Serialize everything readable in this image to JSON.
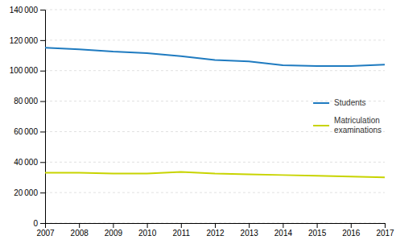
{
  "chart_data": {
    "type": "line",
    "x": [
      2007,
      2008,
      2009,
      2010,
      2011,
      2012,
      2013,
      2014,
      2015,
      2016,
      2017
    ],
    "xlim": [
      2007,
      2017
    ],
    "xticks": [
      2007,
      2008,
      2009,
      2010,
      2011,
      2012,
      2013,
      2014,
      2015,
      2016,
      2017
    ],
    "ylim": [
      0,
      140000
    ],
    "yticks": [
      0,
      {
        "value": 20000,
        "label": "20 000"
      },
      {
        "value": 40000,
        "label": "40 000"
      },
      {
        "value": 60000,
        "label": "60 000"
      },
      {
        "value": 80000,
        "label": "80 000"
      },
      {
        "value": 100000,
        "label": "100 000"
      },
      {
        "value": 120000,
        "label": "120 000"
      },
      {
        "value": 140000,
        "label": "140 000"
      }
    ],
    "grid": true,
    "legend": "right",
    "series": [
      {
        "name": "Students",
        "color": "#1f7bc0",
        "values": [
          115000,
          114000,
          112500,
          111500,
          109500,
          107000,
          106000,
          103500,
          103000,
          103000,
          104000
        ]
      },
      {
        "name": "Matriculation\nexaminations",
        "color": "#c8d400",
        "values": [
          33000,
          33000,
          32500,
          32500,
          33500,
          32500,
          32000,
          31500,
          31000,
          30500,
          30000
        ]
      }
    ]
  }
}
